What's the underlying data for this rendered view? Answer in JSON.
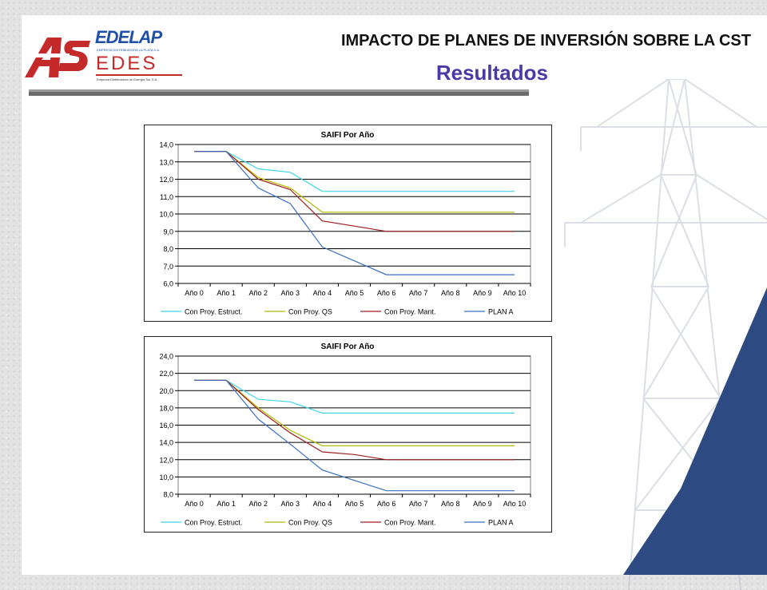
{
  "header": {
    "title": "IMPACTO DE PLANES DE INVERSIÓN SOBRE LA CST",
    "subtitle": "Resultados"
  },
  "logo": {
    "mark": "AS",
    "edelap": "EDELAP",
    "edelap_sub": "EMPRESA DISTRIBUIDORA LA PLATA S.A.",
    "edes": "EDES",
    "edes_sub": "Empresa Distribuidora de Energía Sur S.A.",
    "colors": {
      "red": "#c42a2a",
      "blue": "#1f4fa8"
    }
  },
  "series_colors": [
    "#3fd5ea",
    "#b5b800",
    "#9e1d1d",
    "#3a6fc4"
  ],
  "chart_data": [
    {
      "type": "line",
      "title": "SAIFI Por Año",
      "categories": [
        "Año 0",
        "Año 1",
        "Año 2",
        "Año 3",
        "Año 4",
        "Año 5",
        "Año 6",
        "Año 7",
        "Año 8",
        "Año 9",
        "Año 10"
      ],
      "ylim": [
        6.0,
        14.0
      ],
      "yticks": [
        "14,0",
        "13,0",
        "12,0",
        "11,0",
        "10,0",
        "9,0",
        "8,0",
        "7,0",
        "6,0"
      ],
      "grid": true,
      "legend": "bottom",
      "series": [
        {
          "name": "Con Proy. Estruct.",
          "values": [
            13.6,
            13.6,
            12.6,
            12.4,
            11.3,
            11.3,
            11.3,
            11.3,
            11.3,
            11.3,
            11.3
          ]
        },
        {
          "name": "Con Proy. QS",
          "values": [
            13.6,
            13.6,
            12.1,
            11.5,
            10.1,
            10.1,
            10.1,
            10.1,
            10.1,
            10.1,
            10.1
          ]
        },
        {
          "name": "Con Proy. Mant.",
          "values": [
            13.6,
            13.6,
            12.0,
            11.4,
            9.6,
            9.3,
            9.0,
            9.0,
            9.0,
            9.0,
            9.0
          ]
        },
        {
          "name": "PLAN A",
          "values": [
            13.6,
            13.6,
            11.5,
            10.6,
            8.1,
            7.3,
            6.5,
            6.5,
            6.5,
            6.5,
            6.5
          ]
        }
      ]
    },
    {
      "type": "line",
      "title": "SAIFI Por Año",
      "categories": [
        "Año 0",
        "Año 1",
        "Año 2",
        "Año 3",
        "Año 4",
        "Año 5",
        "Año 6",
        "Año 7",
        "Año 8",
        "Año 9",
        "Año 10"
      ],
      "ylim": [
        8.0,
        24.0
      ],
      "yticks": [
        "24,0",
        "22,0",
        "20,0",
        "18,0",
        "16,0",
        "14,0",
        "12,0",
        "10,0",
        "8,0"
      ],
      "grid": true,
      "legend": "bottom",
      "series": [
        {
          "name": "Con Proy. Estruct.",
          "values": [
            21.2,
            21.2,
            19.0,
            18.7,
            17.4,
            17.4,
            17.4,
            17.4,
            17.4,
            17.4,
            17.4
          ]
        },
        {
          "name": "Con Proy. QS",
          "values": [
            21.2,
            21.2,
            18.0,
            15.4,
            13.6,
            13.6,
            13.6,
            13.6,
            13.6,
            13.6,
            13.6
          ]
        },
        {
          "name": "Con Proy. Mant.",
          "values": [
            21.2,
            21.2,
            17.8,
            15.1,
            12.9,
            12.6,
            12.0,
            12.0,
            12.0,
            12.0,
            12.0
          ]
        },
        {
          "name": "PLAN A",
          "values": [
            21.2,
            21.2,
            16.7,
            13.8,
            10.8,
            9.6,
            8.4,
            8.4,
            8.4,
            8.4,
            8.4
          ]
        }
      ]
    }
  ]
}
